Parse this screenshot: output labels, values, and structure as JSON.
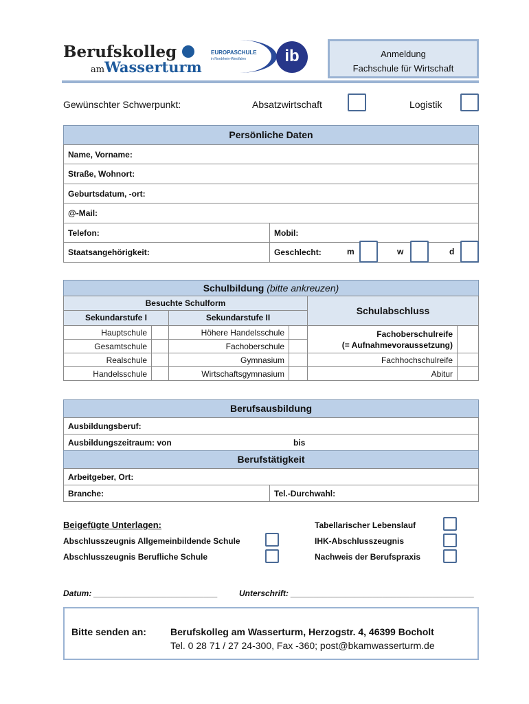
{
  "logo": {
    "line1": "Berufskolleg",
    "line2a": "am",
    "line2b": "Wasserturm",
    "europaschule": "EUROPASCHULE",
    "europaschule_sub": "in Nordrhein-Westfalen",
    "ib": "ib"
  },
  "title": {
    "line1": "Anmeldung",
    "line2": "Fachschule für Wirtschaft"
  },
  "schwerpunkt": {
    "label": "Gewünschter Schwerpunkt:",
    "opt1": "Absatzwirtschaft",
    "opt2": "Logistik"
  },
  "personal": {
    "header": "Persönliche Daten",
    "name": "Name, Vorname:",
    "strasse": "Straße, Wohnort:",
    "geburt": "Geburtsdatum, -ort:",
    "mail": "@-Mail:",
    "telefon": "Telefon:",
    "mobil": "Mobil:",
    "staat": "Staatsangehörigkeit:",
    "geschlecht": "Geschlecht:",
    "m": "m",
    "w": "w",
    "d": "d"
  },
  "schule": {
    "header": "Schulbildung",
    "header_note": "(bitte ankreuzen)",
    "besuchte": "Besuchte Schulform",
    "sek1": "Sekundarstufe I",
    "sek2": "Sekundarstufe II",
    "abschluss": "Schulabschluss",
    "sek1_items": [
      "Hauptschule",
      "Gesamtschule",
      "Realschule",
      "Handelsschule"
    ],
    "sek2_items": [
      "Höhere Handelsschule",
      "Fachoberschule",
      "Gymnasium",
      "Wirtschaftsgymnasium"
    ],
    "abschluss_items": [
      "Fachoberschulreife",
      "(= Aufnahmevoraussetzung)",
      "Fachhochschulreife",
      "Abitur"
    ]
  },
  "ausbildung": {
    "header": "Berufsausbildung",
    "beruf": "Ausbildungsberuf:",
    "zeitraum": "Ausbildungszeitraum: von",
    "bis": "bis"
  },
  "taetigkeit": {
    "header": "Berufstätigkeit",
    "arbeitgeber": "Arbeitgeber, Ort:",
    "branche": "Branche:",
    "tel": "Tel.-Durchwahl:"
  },
  "unterlagen": {
    "header": "Beigefügte Unterlagen:",
    "left": [
      "Abschlusszeugnis Allgemeinbildende Schule",
      "Abschlusszeugnis Berufliche Schule"
    ],
    "right": [
      "Tabellarischer Lebenslauf",
      "IHK-Abschlusszeugnis",
      "Nachweis der Berufspraxis"
    ]
  },
  "sign": {
    "datum": "Datum: ___________________________",
    "unterschrift": "Unterschrift: ________________________________________"
  },
  "footer": {
    "label": "Bitte senden an:",
    "line1": "Berufskolleg am Wasserturm, Herzogstr. 4, 46399 Bocholt",
    "line2": "Tel. 0 28 71 / 27 24-300, Fax -360; post@bkamwasserturm.de"
  }
}
